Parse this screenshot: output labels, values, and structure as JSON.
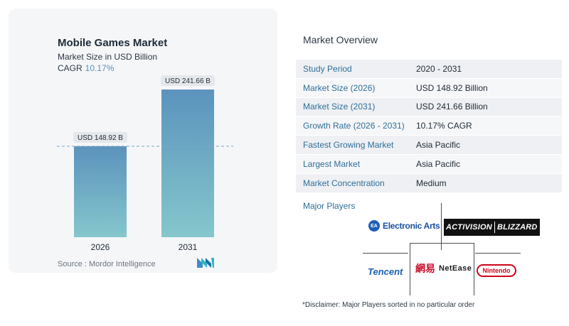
{
  "chart_data": {
    "type": "bar",
    "title": "Mobile Games Market",
    "subtitle": "Market Size in USD Billion",
    "cagr_label": "CAGR",
    "cagr_value": "10.17%",
    "categories": [
      "2026",
      "2031"
    ],
    "values": [
      148.92,
      241.66
    ],
    "data_labels": [
      "USD 148.92 B",
      "USD 241.66 B"
    ],
    "ylim": [
      0,
      300
    ],
    "grid": false,
    "reference_line_at": 148.92,
    "bar_color_top": "#5b93bd",
    "bar_color_bottom": "#85c7cc"
  },
  "source": "Source :  Mordor Intelligence",
  "overview": {
    "title": "Market Overview",
    "rows": [
      {
        "label": "Study Period",
        "value": "2020 - 2031"
      },
      {
        "label": "Market Size (2026)",
        "value": "USD 148.92 Billion"
      },
      {
        "label": "Market Size (2031)",
        "value": "USD 241.66 Billion"
      },
      {
        "label": "Growth Rate (2026 - 2031)",
        "value": "10.17% CAGR"
      },
      {
        "label": "Fastest Growing Market",
        "value": "Asia Pacific"
      },
      {
        "label": "Largest Market",
        "value": "Asia Pacific"
      },
      {
        "label": "Market Concentration",
        "value": "Medium"
      }
    ]
  },
  "players": {
    "label": "Major Players",
    "ea": {
      "badge": "EA",
      "name": "Electronic Arts"
    },
    "activision": {
      "left": "ACTIVISION",
      "right": "BLIZZARD"
    },
    "tencent": "Tencent",
    "netease": {
      "cn": "網易",
      "name": "NetEase"
    },
    "nintendo": "Nintendo"
  },
  "disclaimer": "*Disclaimer: Major Players sorted in no particular order"
}
